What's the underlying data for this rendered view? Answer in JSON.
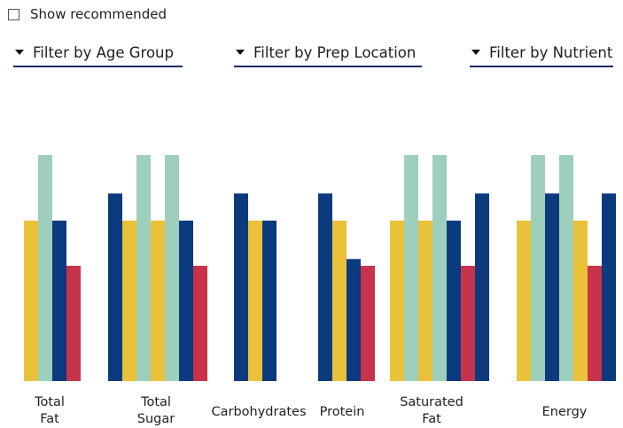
{
  "controls": {
    "show_recommended_label": "Show recommended",
    "show_recommended_checked": false,
    "filters": [
      {
        "label": "Filter by Age Group"
      },
      {
        "label": "Filter by Prep Location"
      },
      {
        "label": "Filter by Nutrient"
      }
    ]
  },
  "colors": {
    "yellow": "#e9c23a",
    "mint": "#9ecfbd",
    "navy": "#0b3a7e",
    "red": "#c7334a"
  },
  "chart_data": {
    "type": "bar",
    "ylim": [
      0,
      100
    ],
    "groups": [
      {
        "label": [
          "Total",
          "Fat"
        ],
        "bars": [
          {
            "color": "yellow",
            "value": 71
          },
          {
            "color": "mint",
            "value": 100
          },
          {
            "color": "navy",
            "value": 71
          },
          {
            "color": "red",
            "value": 51
          }
        ]
      },
      {
        "label": [
          "Total",
          "Sugar"
        ],
        "bars": [
          {
            "color": "navy",
            "value": 83
          },
          {
            "color": "yellow",
            "value": 71
          },
          {
            "color": "mint",
            "value": 100
          },
          {
            "color": "yellow",
            "value": 71
          },
          {
            "color": "mint",
            "value": 100
          },
          {
            "color": "navy",
            "value": 71
          },
          {
            "color": "red",
            "value": 51
          }
        ]
      },
      {
        "label": [
          "Carbohydrates"
        ],
        "bars": [
          {
            "color": "navy",
            "value": 83
          },
          {
            "color": "yellow",
            "value": 71
          },
          {
            "color": "navy",
            "value": 71
          }
        ]
      },
      {
        "label": [
          "Protein"
        ],
        "bars": [
          {
            "color": "navy",
            "value": 83
          },
          {
            "color": "yellow",
            "value": 71
          },
          {
            "color": "navy",
            "value": 54
          },
          {
            "color": "red",
            "value": 51
          }
        ]
      },
      {
        "label": [
          "Saturated",
          "Fat"
        ],
        "bars": [
          {
            "color": "yellow",
            "value": 71
          },
          {
            "color": "mint",
            "value": 100
          },
          {
            "color": "yellow",
            "value": 71
          },
          {
            "color": "mint",
            "value": 100
          },
          {
            "color": "navy",
            "value": 71
          },
          {
            "color": "red",
            "value": 51
          },
          {
            "color": "navy",
            "value": 83
          }
        ]
      },
      {
        "label": [
          "Energy"
        ],
        "bars": [
          {
            "color": "yellow",
            "value": 71
          },
          {
            "color": "mint",
            "value": 100
          },
          {
            "color": "navy",
            "value": 83
          },
          {
            "color": "mint",
            "value": 100
          },
          {
            "color": "yellow",
            "value": 71
          },
          {
            "color": "red",
            "value": 51
          },
          {
            "color": "navy",
            "value": 83
          }
        ]
      }
    ]
  }
}
